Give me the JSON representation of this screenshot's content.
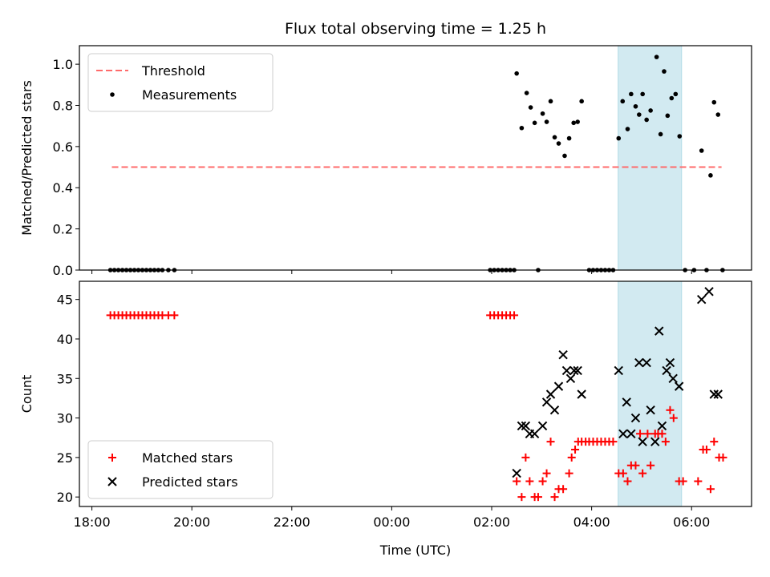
{
  "chart_data": {
    "title": "Flux total observing time = 1.25 h",
    "type": "scatter",
    "x_axis": {
      "label": "Time (UTC)",
      "unit": "hours relative to 00:00 UTC",
      "range": [
        -6.25,
        7.2
      ],
      "ticks": [
        -6,
        -4,
        -2,
        0,
        2,
        4,
        6
      ],
      "tick_labels": [
        "18:00",
        "20:00",
        "22:00",
        "00:00",
        "02:00",
        "04:00",
        "06:00"
      ]
    },
    "highlight_band": {
      "x": [
        4.53,
        5.8
      ],
      "color": "#add8e6"
    },
    "panels": [
      {
        "ylabel": "Matched/Predicted stars",
        "ylim": [
          0,
          1.09
        ],
        "yticks": [
          0.0,
          0.2,
          0.4,
          0.6,
          0.8,
          1.0
        ],
        "ytick_labels": [
          "0.0",
          "0.2",
          "0.4",
          "0.6",
          "0.8",
          "1.0"
        ],
        "legend_position": "top-left",
        "threshold": {
          "name": "Threshold",
          "value": 0.5,
          "x": [
            -5.6,
            6.6
          ],
          "color": "#ff6b6b"
        },
        "series": [
          {
            "name": "Measurements",
            "marker": "dot",
            "color": "#000000",
            "points": [
              [
                -5.63,
                0
              ],
              [
                -5.55,
                0
              ],
              [
                -5.47,
                0
              ],
              [
                -5.39,
                0
              ],
              [
                -5.31,
                0
              ],
              [
                -5.23,
                0
              ],
              [
                -5.15,
                0
              ],
              [
                -5.07,
                0
              ],
              [
                -4.99,
                0
              ],
              [
                -4.91,
                0
              ],
              [
                -4.83,
                0
              ],
              [
                -4.75,
                0
              ],
              [
                -4.67,
                0
              ],
              [
                -4.59,
                0
              ],
              [
                -4.47,
                0
              ],
              [
                -4.35,
                0
              ],
              [
                1.97,
                0
              ],
              [
                2.05,
                0
              ],
              [
                2.13,
                0
              ],
              [
                2.21,
                0
              ],
              [
                2.29,
                0
              ],
              [
                2.37,
                0
              ],
              [
                2.45,
                0
              ],
              [
                2.93,
                0
              ],
              [
                3.95,
                0
              ],
              [
                4.03,
                0
              ],
              [
                4.11,
                0
              ],
              [
                4.19,
                0
              ],
              [
                4.27,
                0
              ],
              [
                4.35,
                0
              ],
              [
                4.43,
                0
              ],
              [
                5.87,
                0
              ],
              [
                6.05,
                0
              ],
              [
                6.3,
                0
              ],
              [
                6.62,
                0
              ],
              [
                2.5,
                0.955
              ],
              [
                2.6,
                0.69
              ],
              [
                2.7,
                0.86
              ],
              [
                2.78,
                0.79
              ],
              [
                2.86,
                0.715
              ],
              [
                3.02,
                0.76
              ],
              [
                3.1,
                0.72
              ],
              [
                3.18,
                0.82
              ],
              [
                3.26,
                0.645
              ],
              [
                3.34,
                0.615
              ],
              [
                3.46,
                0.555
              ],
              [
                3.55,
                0.64
              ],
              [
                3.64,
                0.715
              ],
              [
                3.72,
                0.72
              ],
              [
                3.8,
                0.82
              ],
              [
                4.54,
                0.64
              ],
              [
                4.62,
                0.82
              ],
              [
                4.72,
                0.685
              ],
              [
                4.79,
                0.855
              ],
              [
                4.88,
                0.795
              ],
              [
                4.95,
                0.755
              ],
              [
                5.02,
                0.855
              ],
              [
                5.1,
                0.73
              ],
              [
                5.18,
                0.775
              ],
              [
                5.3,
                1.035
              ],
              [
                5.38,
                0.66
              ],
              [
                5.45,
                0.965
              ],
              [
                5.52,
                0.75
              ],
              [
                5.6,
                0.835
              ],
              [
                5.68,
                0.855
              ],
              [
                5.76,
                0.65
              ],
              [
                6.2,
                0.58
              ],
              [
                6.38,
                0.46
              ],
              [
                6.45,
                0.815
              ],
              [
                6.53,
                0.755
              ]
            ]
          }
        ]
      },
      {
        "ylabel": "Count",
        "ylim": [
          18.8,
          47.3
        ],
        "yticks": [
          20,
          25,
          30,
          35,
          40,
          45
        ],
        "ytick_labels": [
          "20",
          "25",
          "30",
          "35",
          "40",
          "45"
        ],
        "legend_position": "bottom-left",
        "series": [
          {
            "name": "Matched stars",
            "marker": "plus",
            "color": "#ff0000",
            "points": [
              [
                -5.63,
                43
              ],
              [
                -5.55,
                43
              ],
              [
                -5.47,
                43
              ],
              [
                -5.39,
                43
              ],
              [
                -5.31,
                43
              ],
              [
                -5.23,
                43
              ],
              [
                -5.15,
                43
              ],
              [
                -5.07,
                43
              ],
              [
                -4.99,
                43
              ],
              [
                -4.91,
                43
              ],
              [
                -4.83,
                43
              ],
              [
                -4.75,
                43
              ],
              [
                -4.67,
                43
              ],
              [
                -4.59,
                43
              ],
              [
                -4.47,
                43
              ],
              [
                -4.35,
                43
              ],
              [
                1.97,
                43
              ],
              [
                2.05,
                43
              ],
              [
                2.13,
                43
              ],
              [
                2.21,
                43
              ],
              [
                2.29,
                43
              ],
              [
                2.37,
                43
              ],
              [
                2.45,
                43
              ],
              [
                2.5,
                22
              ],
              [
                2.6,
                20
              ],
              [
                2.68,
                25
              ],
              [
                2.76,
                22
              ],
              [
                2.86,
                20
              ],
              [
                2.93,
                20
              ],
              [
                3.02,
                22
              ],
              [
                3.1,
                23
              ],
              [
                3.18,
                27
              ],
              [
                3.26,
                20
              ],
              [
                3.34,
                21
              ],
              [
                3.43,
                21
              ],
              [
                3.55,
                23
              ],
              [
                3.6,
                25
              ],
              [
                3.67,
                26
              ],
              [
                3.73,
                27
              ],
              [
                3.8,
                27
              ],
              [
                3.88,
                27
              ],
              [
                3.95,
                27
              ],
              [
                4.03,
                27
              ],
              [
                4.11,
                27
              ],
              [
                4.19,
                27
              ],
              [
                4.27,
                27
              ],
              [
                4.35,
                27
              ],
              [
                4.43,
                27
              ],
              [
                4.54,
                23
              ],
              [
                4.63,
                23
              ],
              [
                4.72,
                22
              ],
              [
                4.79,
                24
              ],
              [
                4.88,
                24
              ],
              [
                4.97,
                28
              ],
              [
                5.02,
                23
              ],
              [
                5.12,
                28
              ],
              [
                5.18,
                24
              ],
              [
                5.27,
                28
              ],
              [
                5.33,
                28
              ],
              [
                5.41,
                28
              ],
              [
                5.48,
                27
              ],
              [
                5.57,
                31
              ],
              [
                5.64,
                30
              ],
              [
                5.75,
                22
              ],
              [
                5.83,
                22
              ],
              [
                6.13,
                22
              ],
              [
                6.23,
                26
              ],
              [
                6.3,
                26
              ],
              [
                6.38,
                21
              ],
              [
                6.45,
                27
              ],
              [
                6.55,
                25
              ],
              [
                6.63,
                25
              ]
            ]
          },
          {
            "name": "Predicted stars",
            "marker": "x",
            "color": "#000000",
            "points": [
              [
                2.5,
                23
              ],
              [
                2.6,
                29
              ],
              [
                2.68,
                29
              ],
              [
                2.76,
                28
              ],
              [
                2.86,
                28
              ],
              [
                3.02,
                29
              ],
              [
                3.1,
                32
              ],
              [
                3.18,
                33
              ],
              [
                3.26,
                31
              ],
              [
                3.34,
                34
              ],
              [
                3.43,
                38
              ],
              [
                3.5,
                36
              ],
              [
                3.58,
                35
              ],
              [
                3.65,
                36
              ],
              [
                3.72,
                36
              ],
              [
                3.8,
                33
              ],
              [
                4.54,
                36
              ],
              [
                4.63,
                28
              ],
              [
                4.7,
                32
              ],
              [
                4.79,
                28
              ],
              [
                4.88,
                30
              ],
              [
                4.95,
                37
              ],
              [
                5.02,
                27
              ],
              [
                5.1,
                37
              ],
              [
                5.18,
                31
              ],
              [
                5.27,
                27
              ],
              [
                5.35,
                41
              ],
              [
                5.41,
                29
              ],
              [
                5.5,
                36
              ],
              [
                5.57,
                37
              ],
              [
                5.63,
                35
              ],
              [
                5.75,
                34
              ],
              [
                6.2,
                45
              ],
              [
                6.35,
                46
              ],
              [
                6.45,
                33
              ],
              [
                6.53,
                33
              ]
            ]
          }
        ]
      }
    ]
  }
}
